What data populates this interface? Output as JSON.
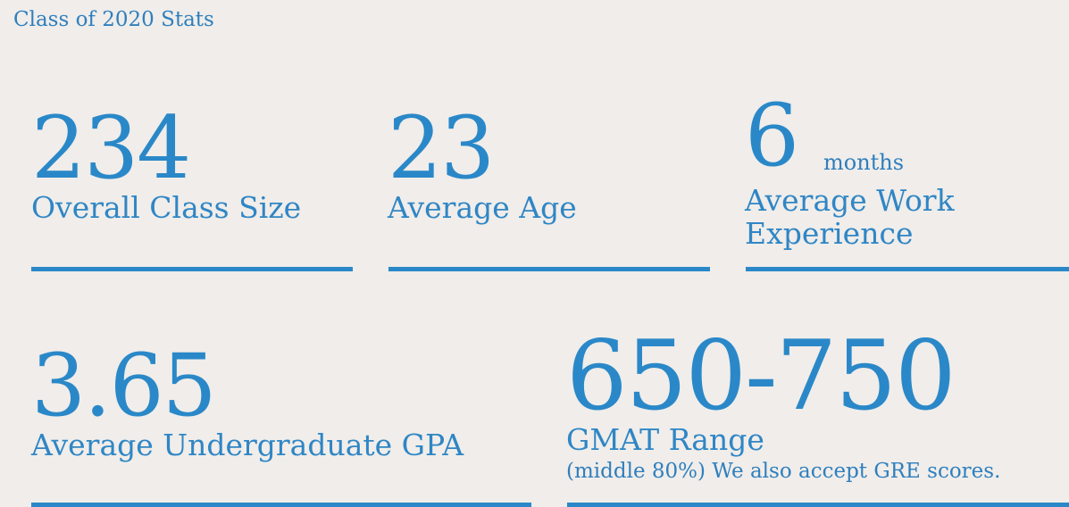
{
  "section": {
    "title": "Class of 2020 Stats"
  },
  "stats": {
    "class_size": {
      "value": "234",
      "label": "Overall Class Size"
    },
    "average_age": {
      "value": "23",
      "label": "Average Age"
    },
    "work_experience": {
      "value": "6",
      "unit": "months",
      "label_line1": "Average Work",
      "label_line2": "Experience"
    },
    "gpa": {
      "value": "3.65",
      "label": "Average Undergraduate GPA"
    },
    "gmat": {
      "value": "650-750",
      "label": "GMAT Range",
      "note": "(middle 80%) We also accept GRE scores."
    }
  },
  "colors": {
    "background": "#f0edea",
    "accent": "#2a88c8"
  }
}
